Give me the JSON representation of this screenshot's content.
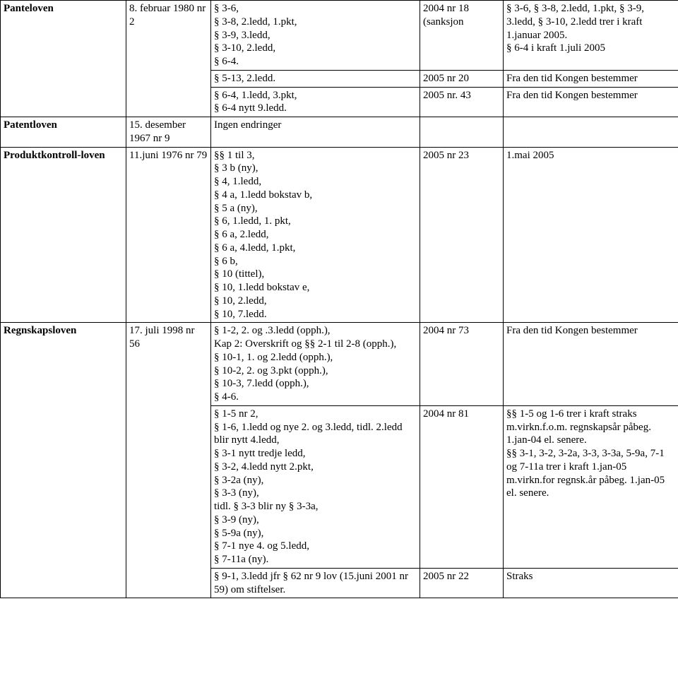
{
  "rows": {
    "panteloven": {
      "name": "Panteloven",
      "date": "8. februar 1980 nr 2",
      "sub1": {
        "para": "§ 3-6,\n§ 3-8, 2.ledd, 1.pkt,\n§ 3-9, 3.ledd,\n§ 3-10, 2.ledd,\n§ 6-4.",
        "ref": "2004 nr 18 (sanksjon",
        "note": "§ 3-6, § 3-8, 2.ledd, 1.pkt, § 3-9, 3.ledd, § 3-10, 2.ledd trer i kraft 1.januar 2005.\n§ 6-4 i kraft 1.juli 2005"
      },
      "sub2": {
        "para": "§ 5-13, 2.ledd.",
        "ref": "2005 nr 20",
        "note": "Fra den tid Kongen bestemmer"
      },
      "sub3": {
        "para": "§ 6-4, 1.ledd, 3.pkt,\n§ 6-4 nytt 9.ledd.",
        "ref": "2005 nr. 43",
        "note": "Fra den tid Kongen bestemmer"
      }
    },
    "patentloven": {
      "name": "Patentloven",
      "date": "15. desember 1967 nr 9",
      "para": "Ingen endringer",
      "ref": "",
      "note": ""
    },
    "produktkontroll": {
      "name": "Produktkontroll-loven",
      "date": "11.juni 1976 nr 79",
      "para": "§§ 1 til 3,\n§ 3 b (ny),\n§ 4, 1.ledd,\n§ 4 a, 1.ledd bokstav b,\n§ 5 a (ny),\n§ 6, 1.ledd, 1. pkt,\n§ 6 a, 2.ledd,\n§ 6 a, 4.ledd, 1.pkt,\n§ 6 b,\n§ 10 (tittel),\n§ 10, 1.ledd bokstav e,\n§ 10, 2.ledd,\n§ 10, 7.ledd.",
      "ref": "2005 nr 23",
      "note": "1.mai 2005"
    },
    "regnskapsloven": {
      "name": "Regnskapsloven",
      "date": "17. juli 1998 nr 56",
      "sub1": {
        "para": "§ 1-2, 2. og .3.ledd (opph.),\nKap 2: Overskrift og §§ 2-1 til 2-8 (opph.),\n§ 10-1, 1. og 2.ledd (opph.),\n§ 10-2, 2. og 3.pkt (opph.),\n§ 10-3, 7.ledd (opph.),\n§ 4-6.",
        "ref": "2004 nr 73",
        "note": "Fra den tid Kongen bestemmer"
      },
      "sub2": {
        "para": "§ 1-5 nr 2,\n§ 1-6, 1.ledd og nye 2. og 3.ledd, tidl. 2.ledd blir nytt 4.ledd,\n§ 3-1 nytt tredje ledd,\n§ 3-2, 4.ledd nytt 2.pkt,\n§ 3-2a (ny),\n§ 3-3 (ny),\ntidl. § 3-3 blir ny § 3-3a,\n§ 3-9 (ny),\n§ 5-9a (ny),\n§ 7-1 nye 4. og 5.ledd,\n§ 7-11a (ny).",
        "ref": "2004 nr 81",
        "note": "§§ 1-5 og 1-6 trer i kraft straks m.virkn.f.o.m. regnskapsår påbeg. 1.jan-04 el. senere.\n§§ 3-1, 3-2, 3-2a, 3-3, 3-3a, 5-9a, 7-1 og 7-11a trer i kraft 1.jan-05 m.virkn.for regnsk.år påbeg. 1.jan-05 el. senere."
      },
      "sub3": {
        "para": "§ 9-1, 3.ledd jfr § 62 nr 9 lov (15.juni 2001 nr 59) om stiftelser.",
        "ref": "2005 nr 22",
        "note": "Straks"
      }
    }
  }
}
